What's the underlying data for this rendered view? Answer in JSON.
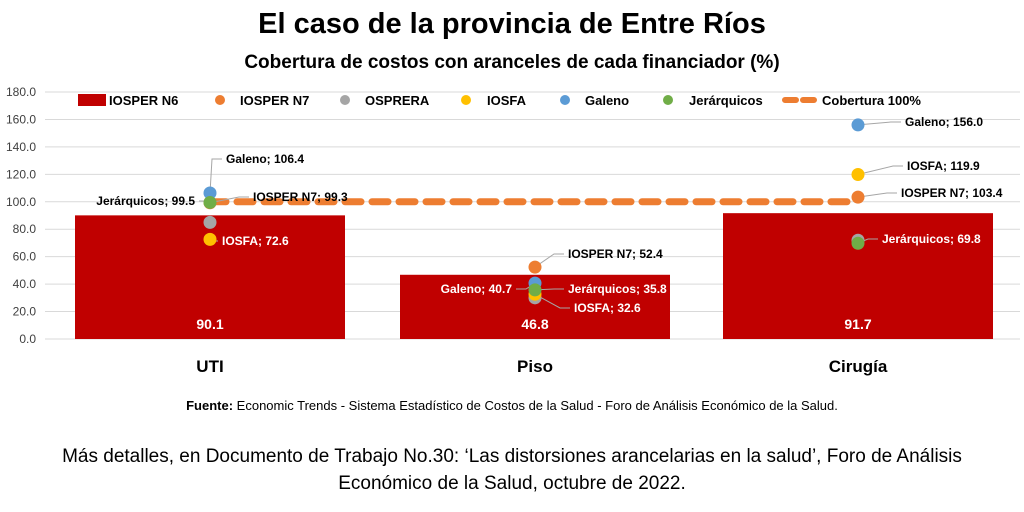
{
  "title": "El caso de la provincia de Entre Ríos",
  "subtitle": "Cobertura de costos con aranceles de cada financiador (%)",
  "source_label": "Fuente:",
  "source_text": " Economic Trends - Sistema Estadístico de Costos de la Salud - Foro de Análisis Económico de la Salud.",
  "note_line1": "Más detalles, en Documento de Trabajo No.30: ‘Las distorsiones arancelarias en la salud’, Foro de Análisis",
  "note_line2": "Económico de la Salud, octubre de 2022.",
  "chart_data": {
    "type": "bar",
    "categories": [
      "UTI",
      "Piso",
      "Cirugía"
    ],
    "ylim": [
      0,
      180
    ],
    "yticks": [
      "0.0",
      "20.0",
      "40.0",
      "60.0",
      "80.0",
      "100.0",
      "120.0",
      "140.0",
      "160.0",
      "180.0"
    ],
    "grid": true,
    "legend_position": "top",
    "bar_series": {
      "name": "IOSPER N6",
      "values": [
        90.1,
        46.8,
        91.7
      ],
      "color": "#C00000"
    },
    "point_series": [
      {
        "name": "IOSPER N7",
        "values": [
          99.3,
          52.4,
          103.4
        ],
        "color": "#ED7D31"
      },
      {
        "name": "OSPRERA",
        "values": [
          85.0,
          30.0,
          72.0
        ],
        "color": "#A5A5A5",
        "labeled": false
      },
      {
        "name": "IOSFA",
        "values": [
          72.6,
          32.6,
          119.9
        ],
        "color": "#FFC000"
      },
      {
        "name": "Galeno",
        "values": [
          106.4,
          40.7,
          156.0
        ],
        "color": "#5B9BD5"
      },
      {
        "name": "Jerárquicos",
        "values": [
          99.5,
          35.8,
          69.8
        ],
        "color": "#70AD47"
      }
    ],
    "reference_line": {
      "name": "Cobertura 100%",
      "value": 100,
      "color": "#ED7D31"
    }
  }
}
